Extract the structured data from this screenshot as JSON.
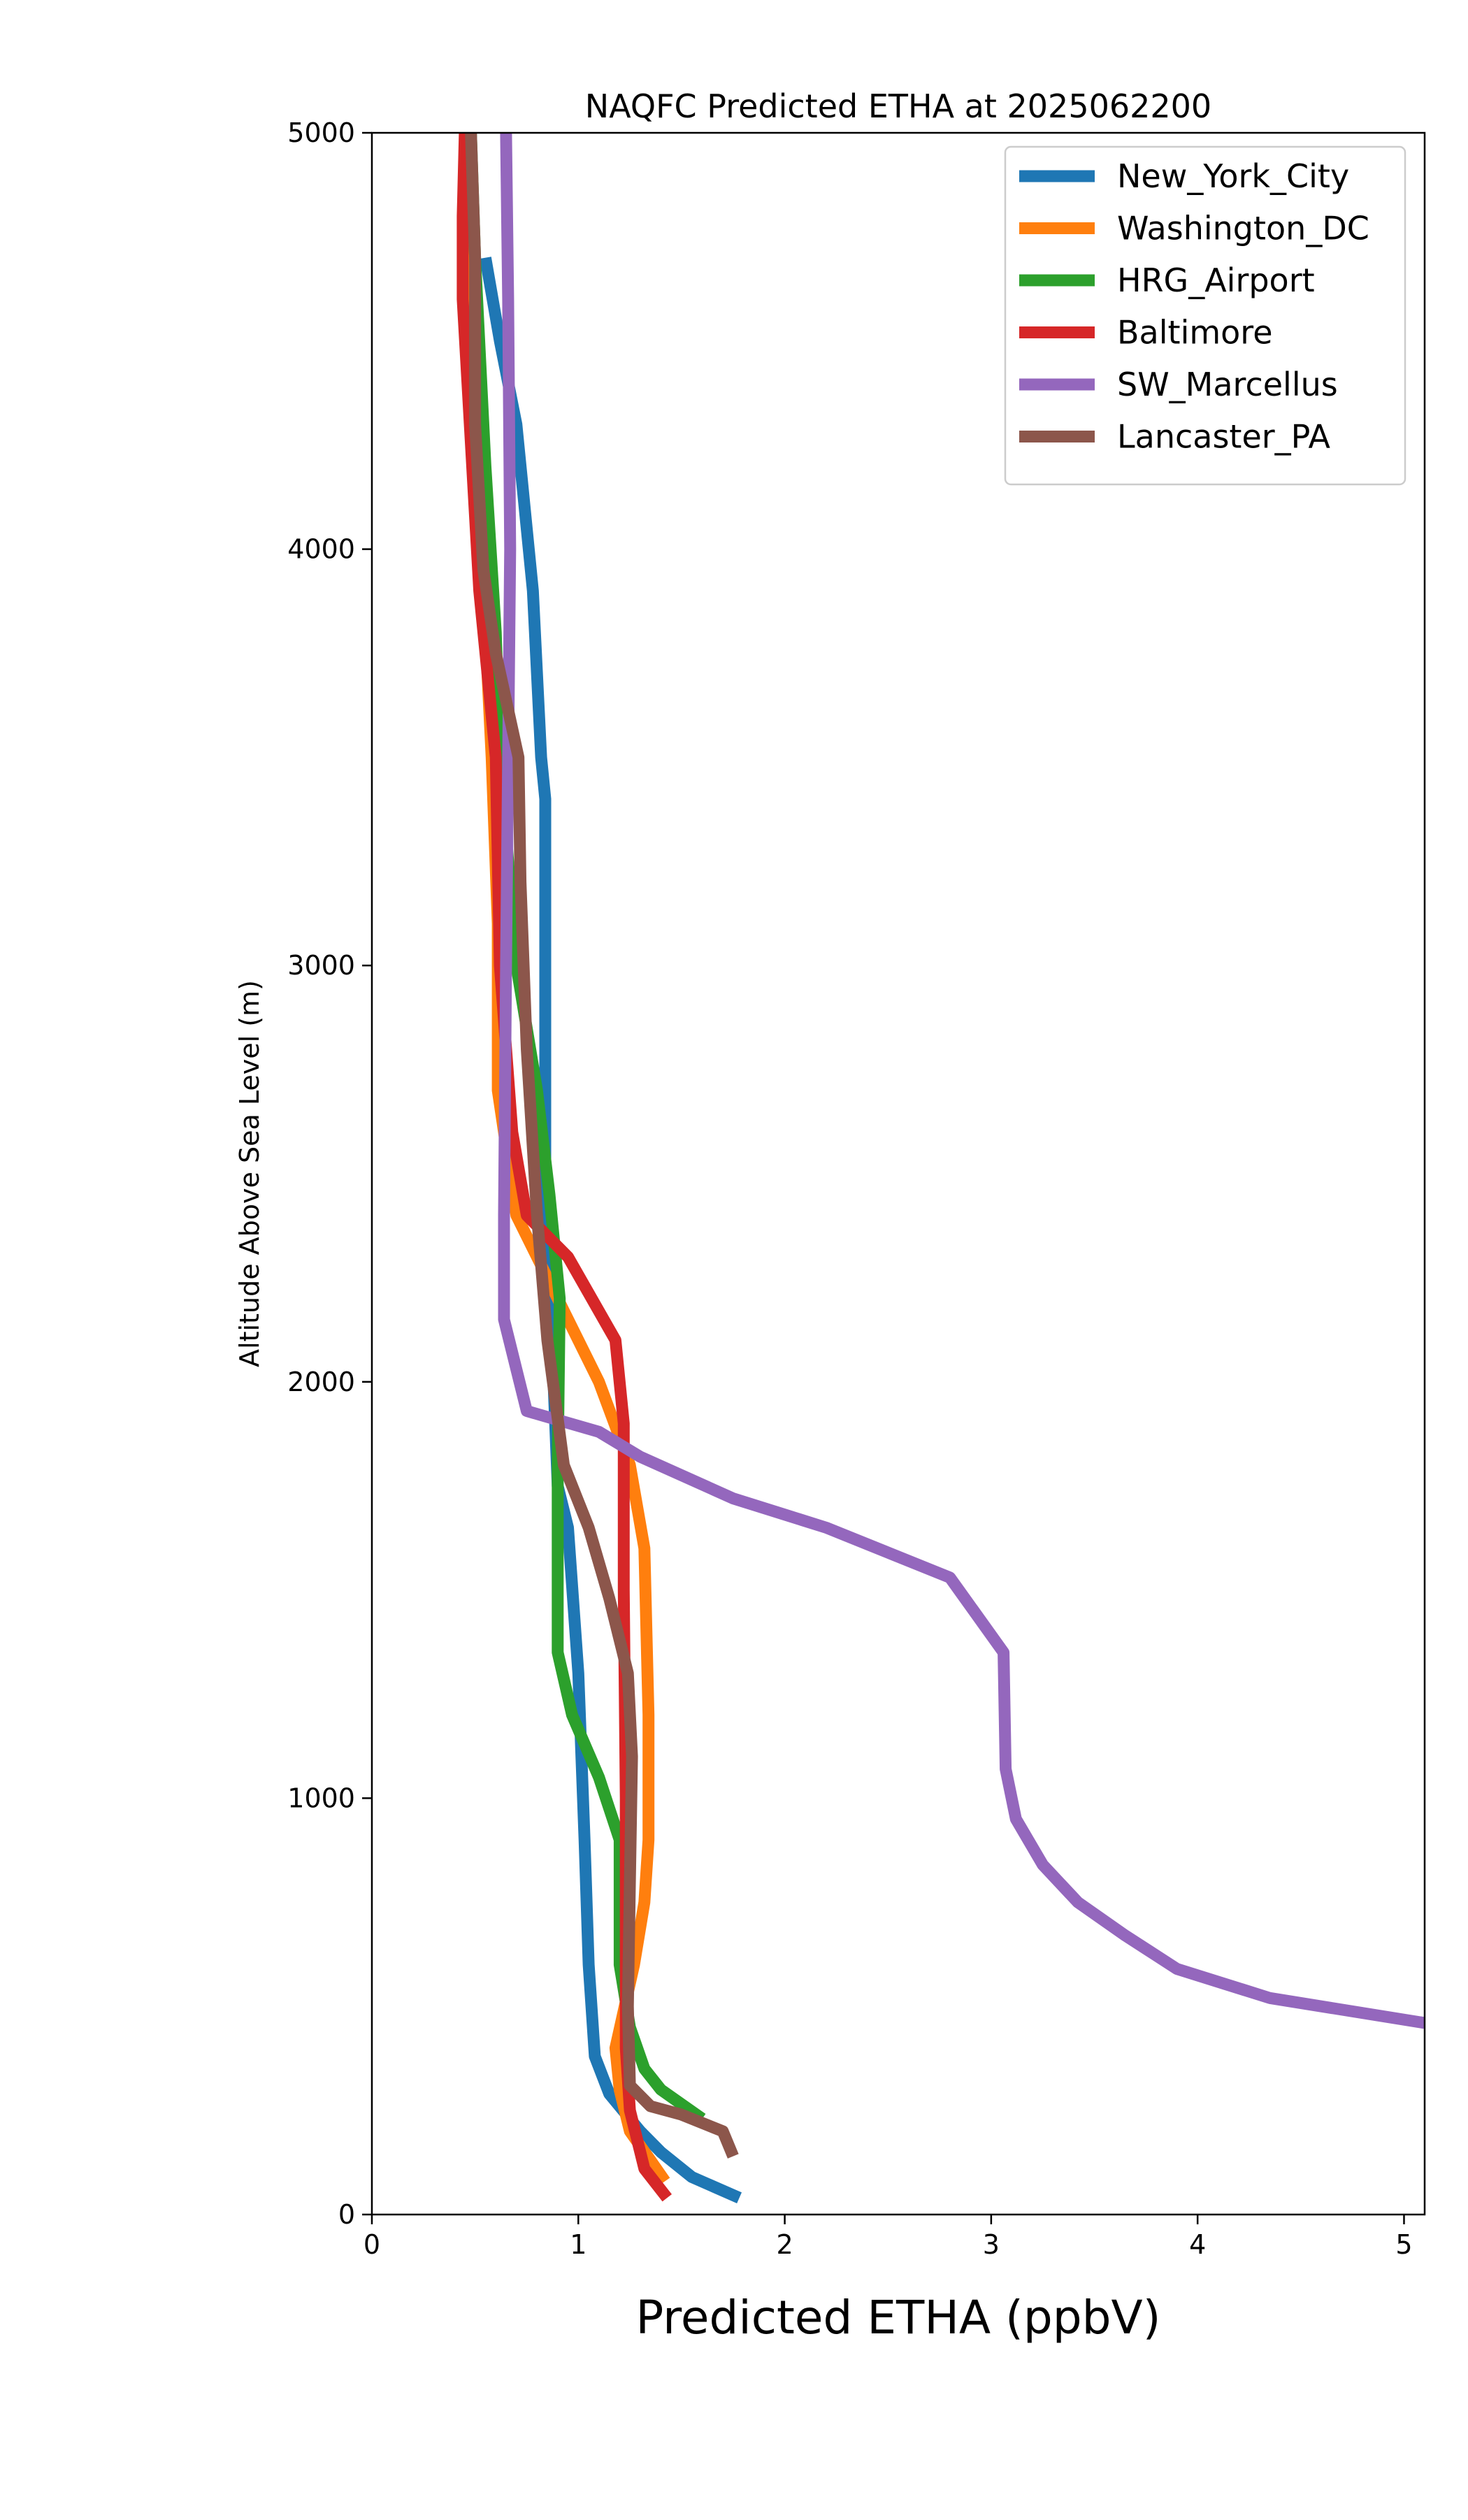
{
  "chart_data": {
    "type": "line",
    "title": "NAQFC Predicted ETHA at 2025062200",
    "xlabel": "Predicted ETHA (ppbV)",
    "ylabel": "Altitude Above Sea Level (m)",
    "xlim": [
      0,
      5.1
    ],
    "ylim": [
      0,
      5000
    ],
    "xticks": [
      0,
      1,
      2,
      3,
      4,
      5
    ],
    "yticks": [
      0,
      1000,
      2000,
      3000,
      4000,
      5000
    ],
    "grid": false,
    "legend_position": "top-right",
    "series": [
      {
        "name": "New_York_City",
        "color": "#1f77b4",
        "points": [
          [
            1.78,
            40
          ],
          [
            1.55,
            90
          ],
          [
            1.4,
            150
          ],
          [
            1.3,
            200
          ],
          [
            1.15,
            290
          ],
          [
            1.08,
            380
          ],
          [
            1.05,
            600
          ],
          [
            1.03,
            900
          ],
          [
            1.0,
            1300
          ],
          [
            0.95,
            1650
          ],
          [
            0.9,
            1750
          ],
          [
            0.84,
            2500
          ],
          [
            0.84,
            3000
          ],
          [
            0.84,
            3400
          ],
          [
            0.82,
            3500
          ],
          [
            0.78,
            3900
          ],
          [
            0.7,
            4300
          ],
          [
            0.62,
            4500
          ],
          [
            0.55,
            4700
          ]
        ]
      },
      {
        "name": "Washington_DC",
        "color": "#ff7f0e",
        "points": [
          [
            1.42,
            80
          ],
          [
            1.35,
            130
          ],
          [
            1.25,
            200
          ],
          [
            1.2,
            300
          ],
          [
            1.18,
            400
          ],
          [
            1.27,
            600
          ],
          [
            1.32,
            750
          ],
          [
            1.34,
            900
          ],
          [
            1.34,
            1200
          ],
          [
            1.32,
            1600
          ],
          [
            1.25,
            1800
          ],
          [
            1.1,
            2000
          ],
          [
            0.85,
            2250
          ],
          [
            0.7,
            2400
          ],
          [
            0.61,
            2700
          ],
          [
            0.61,
            3100
          ],
          [
            0.58,
            3500
          ],
          [
            0.55,
            3800
          ],
          [
            0.48,
            4300
          ],
          [
            0.46,
            4800
          ],
          [
            0.46,
            5000
          ]
        ]
      },
      {
        "name": "HRG_Airport",
        "color": "#2ca02c",
        "points": [
          [
            1.6,
            230
          ],
          [
            1.4,
            300
          ],
          [
            1.32,
            350
          ],
          [
            1.25,
            450
          ],
          [
            1.2,
            600
          ],
          [
            1.2,
            900
          ],
          [
            1.1,
            1050
          ],
          [
            0.97,
            1200
          ],
          [
            0.9,
            1350
          ],
          [
            0.9,
            1800
          ],
          [
            0.91,
            2200
          ],
          [
            0.86,
            2450
          ],
          [
            0.8,
            2700
          ],
          [
            0.7,
            3000
          ],
          [
            0.62,
            3500
          ],
          [
            0.6,
            3800
          ],
          [
            0.55,
            4200
          ],
          [
            0.5,
            4700
          ],
          [
            0.48,
            5000
          ]
        ]
      },
      {
        "name": "Baltimore",
        "color": "#d62728",
        "points": [
          [
            1.43,
            40
          ],
          [
            1.32,
            110
          ],
          [
            1.25,
            250
          ],
          [
            1.23,
            400
          ],
          [
            1.23,
            600
          ],
          [
            1.23,
            1000
          ],
          [
            1.22,
            1500
          ],
          [
            1.22,
            1900
          ],
          [
            1.18,
            2100
          ],
          [
            0.95,
            2300
          ],
          [
            0.75,
            2400
          ],
          [
            0.68,
            2600
          ],
          [
            0.62,
            3000
          ],
          [
            0.6,
            3500
          ],
          [
            0.52,
            3900
          ],
          [
            0.44,
            4600
          ],
          [
            0.44,
            4800
          ],
          [
            0.45,
            5000
          ]
        ]
      },
      {
        "name": "SW_Marcellus",
        "color": "#9467bd",
        "points": [
          [
            5.1,
            460
          ],
          [
            4.35,
            520
          ],
          [
            3.9,
            590
          ],
          [
            3.65,
            670
          ],
          [
            3.42,
            750
          ],
          [
            3.25,
            840
          ],
          [
            3.12,
            950
          ],
          [
            3.07,
            1070
          ],
          [
            3.06,
            1350
          ],
          [
            2.8,
            1530
          ],
          [
            2.2,
            1650
          ],
          [
            1.75,
            1720
          ],
          [
            1.3,
            1820
          ],
          [
            1.1,
            1880
          ],
          [
            0.75,
            1930
          ],
          [
            0.64,
            2150
          ],
          [
            0.64,
            2400
          ],
          [
            0.65,
            3000
          ],
          [
            0.66,
            3500
          ],
          [
            0.67,
            4000
          ],
          [
            0.66,
            4600
          ],
          [
            0.65,
            5000
          ]
        ]
      },
      {
        "name": "Lancaster_PA",
        "color": "#8c564b",
        "points": [
          [
            1.75,
            140
          ],
          [
            1.7,
            200
          ],
          [
            1.5,
            240
          ],
          [
            1.35,
            260
          ],
          [
            1.25,
            310
          ],
          [
            1.24,
            500
          ],
          [
            1.25,
            800
          ],
          [
            1.26,
            1100
          ],
          [
            1.24,
            1300
          ],
          [
            1.15,
            1480
          ],
          [
            1.05,
            1650
          ],
          [
            0.93,
            1800
          ],
          [
            0.85,
            2100
          ],
          [
            0.8,
            2400
          ],
          [
            0.75,
            2800
          ],
          [
            0.72,
            3200
          ],
          [
            0.71,
            3500
          ],
          [
            0.6,
            3750
          ],
          [
            0.54,
            3950
          ],
          [
            0.5,
            4300
          ],
          [
            0.5,
            4700
          ],
          [
            0.48,
            5000
          ]
        ]
      }
    ]
  }
}
